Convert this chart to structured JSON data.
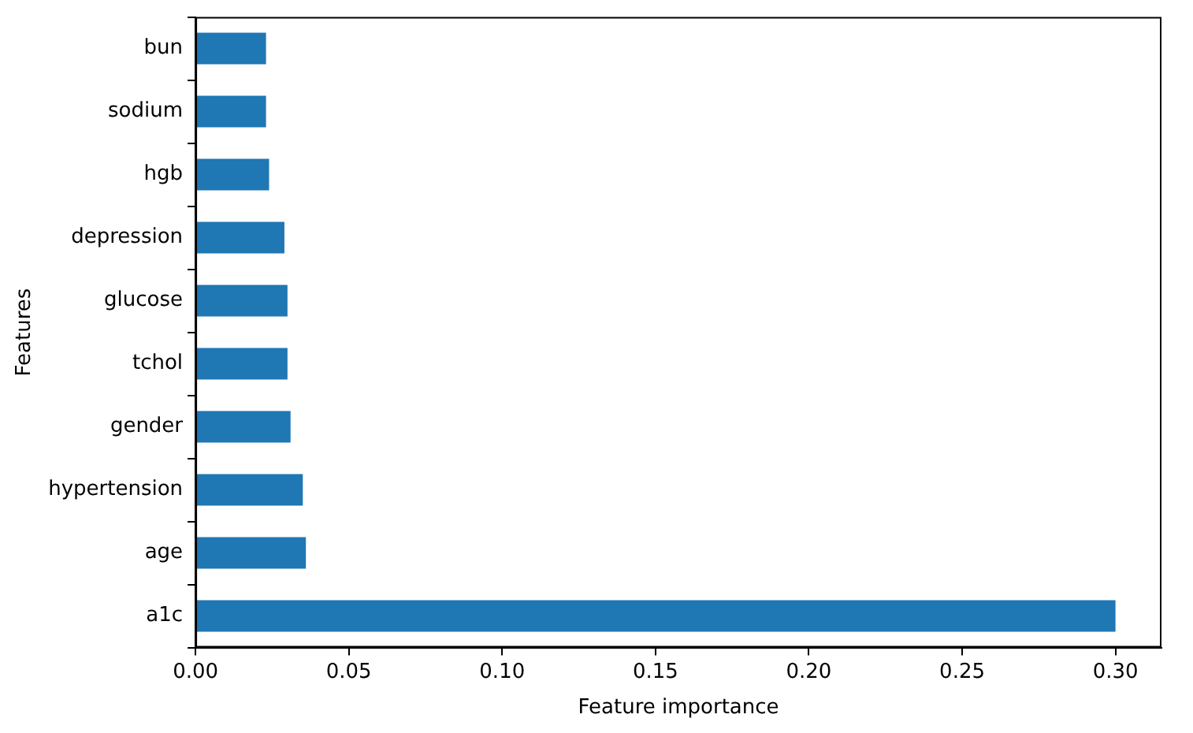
{
  "chart_data": {
    "type": "bar",
    "orientation": "horizontal",
    "categories": [
      "bun",
      "sodium",
      "hgb",
      "depression",
      "glucose",
      "tchol",
      "gender",
      "hypertension",
      "age",
      "a1c"
    ],
    "values": [
      0.023,
      0.023,
      0.024,
      0.029,
      0.03,
      0.03,
      0.031,
      0.035,
      0.036,
      0.3
    ],
    "color": "#1f77b4",
    "xlabel": "Feature importance",
    "ylabel": "Features",
    "xlim": [
      0,
      0.315
    ],
    "xticks": [
      {
        "value": 0,
        "label": "0.00"
      },
      {
        "value": 0.05,
        "label": "0.05"
      },
      {
        "value": 0.1,
        "label": "0.10"
      },
      {
        "value": 0.15,
        "label": "0.15"
      },
      {
        "value": 0.2,
        "label": "0.20"
      },
      {
        "value": 0.25,
        "label": "0.25"
      },
      {
        "value": 0.3,
        "label": "0.30"
      }
    ],
    "grid": false,
    "legend": false
  }
}
